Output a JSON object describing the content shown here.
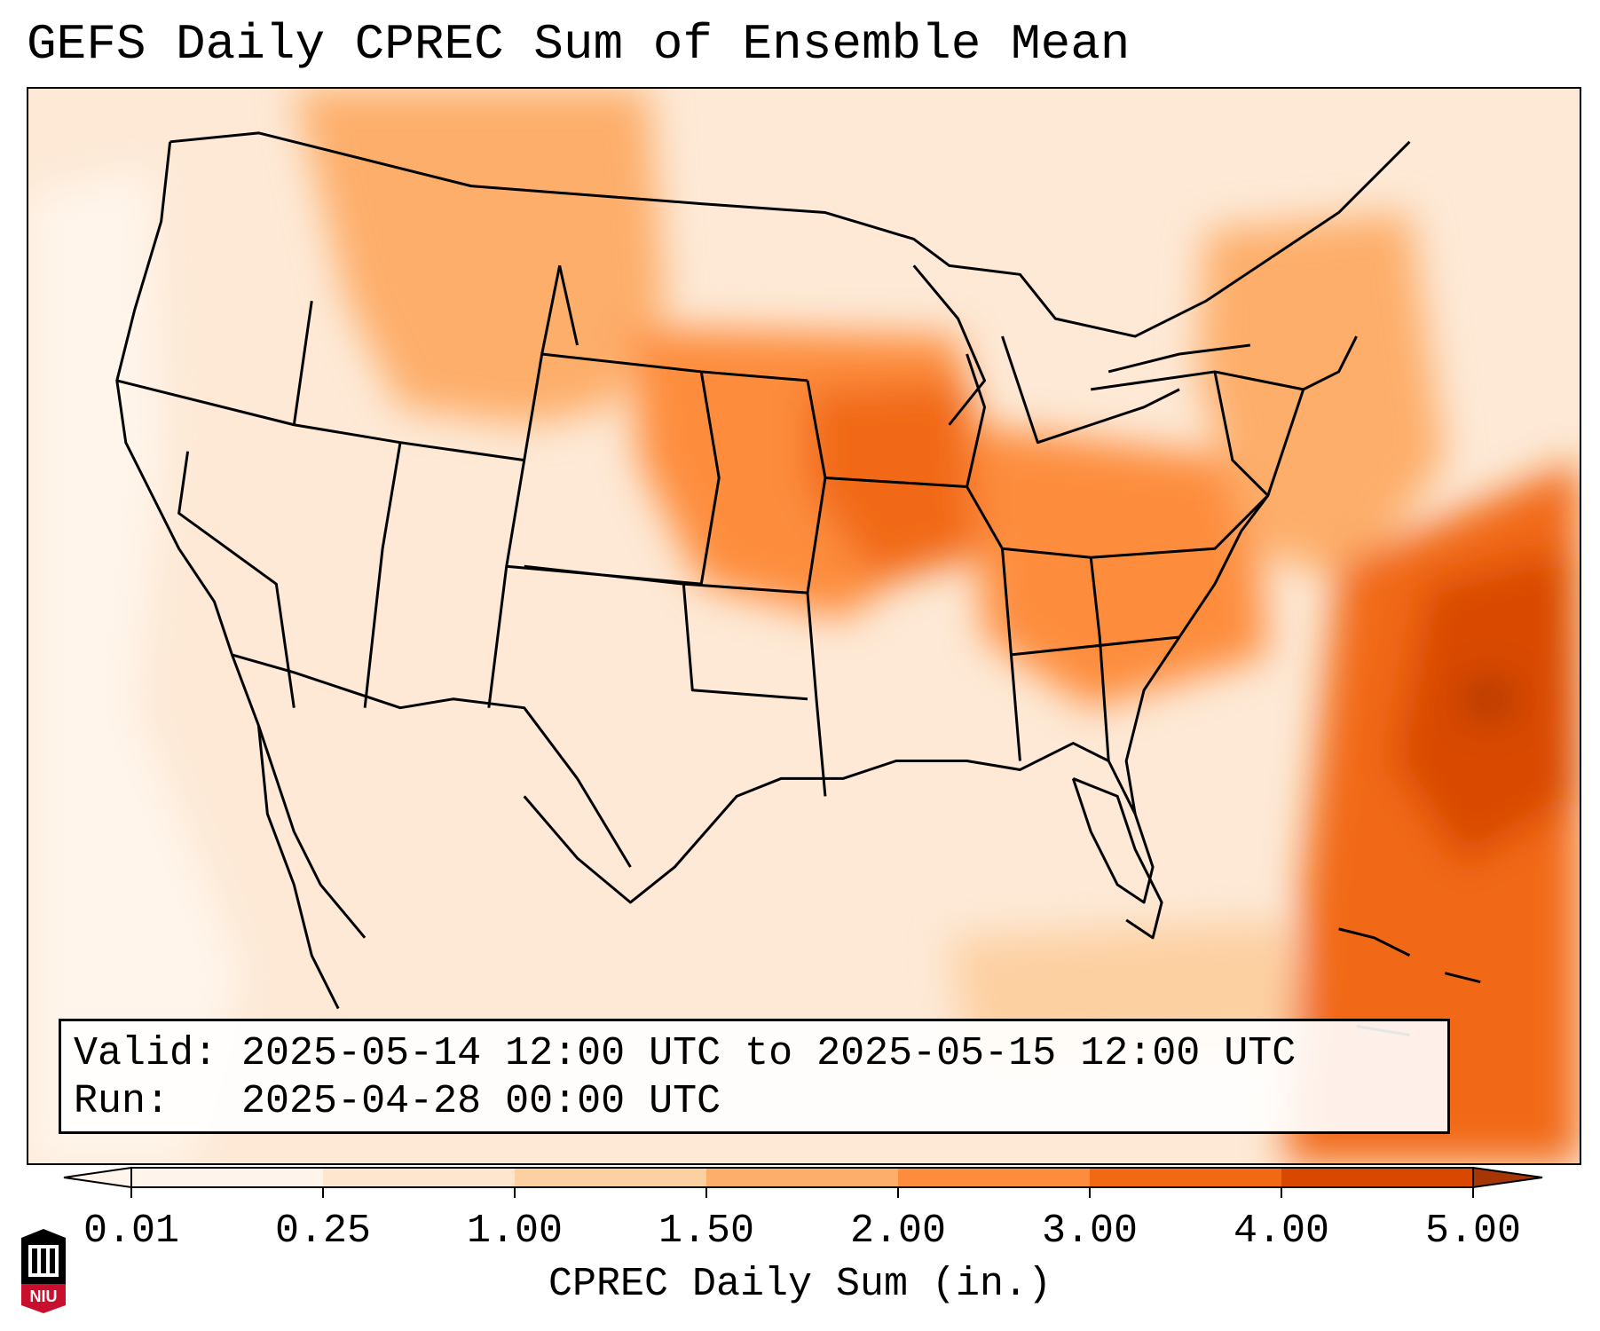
{
  "title": "GEFS Daily CPREC Sum of Ensemble Mean",
  "info": {
    "valid_label": "Valid:",
    "valid_value": "2025-05-14 12:00 UTC to 2025-05-15 12:00 UTC",
    "run_label": "Run:",
    "run_value": "2025-04-28 00:00 UTC"
  },
  "colorbar": {
    "label": "CPREC Daily Sum (in.)",
    "ticks": [
      "0.01",
      "0.25",
      "1.00",
      "1.50",
      "2.00",
      "3.00",
      "4.00",
      "5.00"
    ],
    "colors": [
      "#fff5eb",
      "#fee6ce",
      "#fdd0a2",
      "#fdae6b",
      "#fd8d3c",
      "#f16913",
      "#d94801",
      "#a63603"
    ]
  },
  "logo": {
    "text": "NIU"
  },
  "map": {
    "background_color": "#fde9d6",
    "boundary_color": "#000000",
    "regions": [
      {
        "name": "pacific-offshore",
        "level": 0
      },
      {
        "name": "northern-rockies",
        "level": 3
      },
      {
        "name": "northern-plains",
        "level": 4
      },
      {
        "name": "iowa-minnesota",
        "level": 5
      },
      {
        "name": "ohio-valley",
        "level": 4
      },
      {
        "name": "mid-atlantic",
        "level": 3
      },
      {
        "name": "gulf-of-mexico",
        "level": 2
      },
      {
        "name": "western-atlantic",
        "level": 5
      },
      {
        "name": "atlantic-maximum",
        "level": 6
      },
      {
        "name": "atlantic-peak-cell",
        "level": 7
      }
    ]
  }
}
